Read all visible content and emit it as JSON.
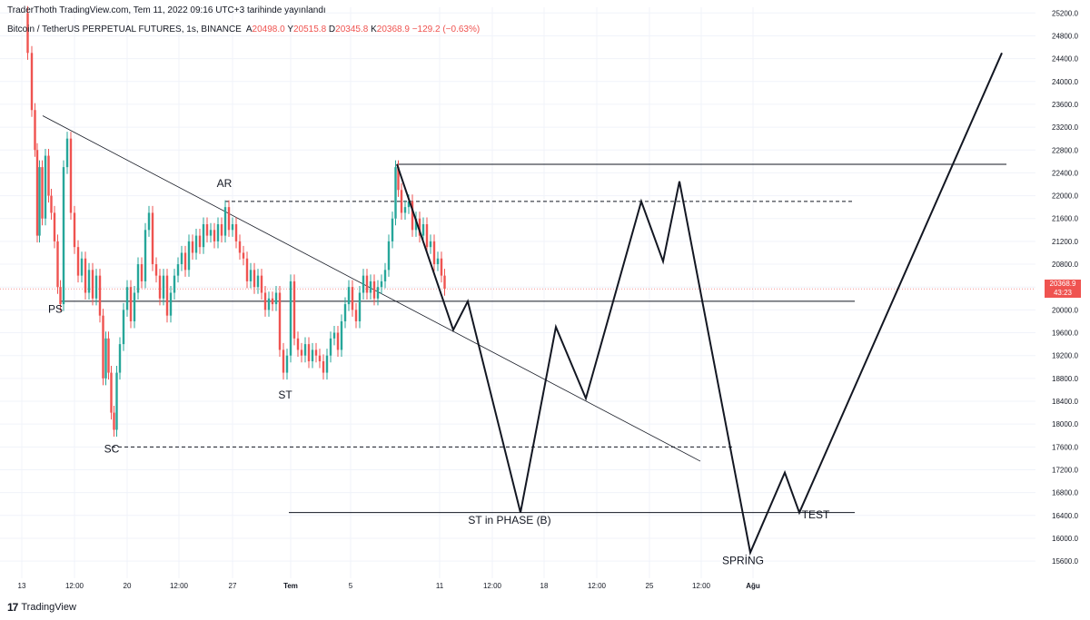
{
  "header": {
    "published": "TraderThoth TradingView.com, Tem 11, 2022 09:16 UTC+3 tarihinde yayınlandı",
    "symbol": "Bitcoin / TetherUS PERPETUAL FUTURES, 1s, BINANCE",
    "open_label": "A",
    "open": "20498.0",
    "high_label": "Y",
    "high": "20515.8",
    "low_label": "D",
    "low": "20345.8",
    "close_label": "K",
    "close": "20368.9",
    "change": "−129.2 (−0.63%)"
  },
  "footer": {
    "brand": "TradingView",
    "logo": "tv-logo-icon"
  },
  "price_tag": {
    "price": "20368.9",
    "countdown": "43:23"
  },
  "colors": {
    "up": "#26a69a",
    "down": "#ef5350",
    "line": "#131722",
    "grid": "#f0f3fa",
    "current": "#ef5350"
  },
  "chart_data": {
    "type": "line",
    "y_axis": {
      "range": [
        15300,
        25300
      ],
      "ticks": [
        15600,
        16000,
        16400,
        16800,
        17200,
        17600,
        18000,
        18400,
        18800,
        19200,
        19600,
        20000,
        20400,
        20800,
        21200,
        21600,
        22000,
        22400,
        22800,
        23200,
        23600,
        24000,
        24400,
        24800,
        25200
      ],
      "tick_labels": [
        "15600.0",
        "16000.0",
        "16400.0",
        "16800.0",
        "17200.0",
        "17600.0",
        "18000.0",
        "18400.0",
        "18800.0",
        "19200.0",
        "19600.0",
        "20000.0",
        "20400.0",
        "20800.0",
        "21200.0",
        "21600.0",
        "22000.0",
        "22400.0",
        "22800.0",
        "23200.0",
        "23600.0",
        "24000.0",
        "24400.0",
        "24800.0",
        "25200.0"
      ]
    },
    "x_axis": {
      "range": [
        0,
        1130
      ],
      "ticks": [
        {
          "x": 24,
          "label": "13"
        },
        {
          "x": 82,
          "label": "12:00"
        },
        {
          "x": 140,
          "label": "20"
        },
        {
          "x": 197,
          "label": "12:00"
        },
        {
          "x": 256,
          "label": "27"
        },
        {
          "x": 320,
          "label": "Tem",
          "bold": true
        },
        {
          "x": 386,
          "label": "5"
        },
        {
          "x": 484,
          "label": "11"
        },
        {
          "x": 542,
          "label": "12:00"
        },
        {
          "x": 599,
          "label": "18"
        },
        {
          "x": 657,
          "label": "12:00"
        },
        {
          "x": 715,
          "label": "25"
        },
        {
          "x": 772,
          "label": "12:00"
        },
        {
          "x": 829,
          "label": "Ağu",
          "bold": true
        }
      ]
    },
    "price_path": [
      [
        28,
        25200
      ],
      [
        33,
        24500
      ],
      [
        37,
        23500
      ],
      [
        40,
        22800
      ],
      [
        42,
        21300
      ],
      [
        45,
        22500
      ],
      [
        48,
        21600
      ],
      [
        52,
        22700
      ],
      [
        55,
        22000
      ],
      [
        58,
        21700
      ],
      [
        62,
        21200
      ],
      [
        65,
        20400
      ],
      [
        68,
        20100
      ],
      [
        72,
        22500
      ],
      [
        76,
        23000
      ],
      [
        80,
        21700
      ],
      [
        84,
        21100
      ],
      [
        88,
        20600
      ],
      [
        92,
        20900
      ],
      [
        96,
        20300
      ],
      [
        100,
        20700
      ],
      [
        104,
        20200
      ],
      [
        108,
        20600
      ],
      [
        112,
        19900
      ],
      [
        115,
        18800
      ],
      [
        118,
        19500
      ],
      [
        121,
        18900
      ],
      [
        124,
        18200
      ],
      [
        127,
        17900
      ],
      [
        130,
        18900
      ],
      [
        134,
        19400
      ],
      [
        138,
        20000
      ],
      [
        142,
        20400
      ],
      [
        146,
        19800
      ],
      [
        150,
        20300
      ],
      [
        154,
        20800
      ],
      [
        158,
        20500
      ],
      [
        162,
        21400
      ],
      [
        166,
        21700
      ],
      [
        170,
        20800
      ],
      [
        174,
        20600
      ],
      [
        178,
        20200
      ],
      [
        182,
        20600
      ],
      [
        186,
        19900
      ],
      [
        190,
        20300
      ],
      [
        194,
        20600
      ],
      [
        198,
        20800
      ],
      [
        202,
        21000
      ],
      [
        206,
        20700
      ],
      [
        210,
        21200
      ],
      [
        214,
        21000
      ],
      [
        218,
        21300
      ],
      [
        222,
        21100
      ],
      [
        226,
        21500
      ],
      [
        230,
        21300
      ],
      [
        234,
        21400
      ],
      [
        238,
        21200
      ],
      [
        242,
        21500
      ],
      [
        246,
        21300
      ],
      [
        250,
        21800
      ],
      [
        254,
        21400
      ],
      [
        258,
        21500
      ],
      [
        262,
        21200
      ],
      [
        266,
        21000
      ],
      [
        270,
        20900
      ],
      [
        274,
        20500
      ],
      [
        278,
        20700
      ],
      [
        282,
        20400
      ],
      [
        286,
        20600
      ],
      [
        290,
        20300
      ],
      [
        294,
        20000
      ],
      [
        298,
        20200
      ],
      [
        302,
        20100
      ],
      [
        306,
        20300
      ],
      [
        310,
        19300
      ],
      [
        314,
        18900
      ],
      [
        318,
        19200
      ],
      [
        322,
        20500
      ],
      [
        326,
        19500
      ],
      [
        330,
        19300
      ],
      [
        334,
        19200
      ],
      [
        338,
        19400
      ],
      [
        342,
        19100
      ],
      [
        346,
        19300
      ],
      [
        350,
        19200
      ],
      [
        354,
        19100
      ],
      [
        358,
        18900
      ],
      [
        362,
        19200
      ],
      [
        366,
        19500
      ],
      [
        370,
        19600
      ],
      [
        374,
        19300
      ],
      [
        378,
        19800
      ],
      [
        382,
        20100
      ],
      [
        386,
        20400
      ],
      [
        390,
        20000
      ],
      [
        394,
        19800
      ],
      [
        398,
        20300
      ],
      [
        402,
        20600
      ],
      [
        406,
        20300
      ],
      [
        410,
        20500
      ],
      [
        414,
        20200
      ],
      [
        418,
        20400
      ],
      [
        422,
        20500
      ],
      [
        426,
        20700
      ],
      [
        430,
        21200
      ],
      [
        434,
        21600
      ],
      [
        437,
        22500
      ],
      [
        440,
        22100
      ],
      [
        444,
        21700
      ],
      [
        448,
        21800
      ],
      [
        452,
        21900
      ],
      [
        456,
        21400
      ],
      [
        460,
        21600
      ],
      [
        464,
        21300
      ],
      [
        468,
        21500
      ],
      [
        472,
        21100
      ],
      [
        476,
        21200
      ],
      [
        480,
        20800
      ],
      [
        484,
        20900
      ],
      [
        488,
        20600
      ],
      [
        491,
        20368
      ]
    ],
    "current_price": 20368.9,
    "projection": [
      [
        437,
        22550
      ],
      [
        499,
        19650
      ],
      [
        515,
        20150
      ],
      [
        573,
        16450
      ],
      [
        612,
        19700
      ],
      [
        645,
        18450
      ],
      [
        706,
        21900
      ],
      [
        730,
        20850
      ],
      [
        748,
        22250
      ],
      [
        826,
        15750
      ],
      [
        864,
        17150
      ],
      [
        880,
        16450
      ],
      [
        1103,
        24500
      ]
    ],
    "levels": [
      {
        "style": "solid",
        "price": 20150,
        "x": [
          67,
          941
        ]
      },
      {
        "style": "solid",
        "price": 22550,
        "x": [
          437,
          1108
        ]
      },
      {
        "style": "dashed",
        "price": 21900,
        "x": [
          248,
          941
        ]
      },
      {
        "style": "dashed",
        "price": 17600,
        "x": [
          123,
          806
        ]
      },
      {
        "style": "solid",
        "price": 16450,
        "x": [
          318,
          941
        ]
      }
    ],
    "trendline": [
      [
        47,
        23400
      ],
      [
        771,
        17350
      ]
    ],
    "annotations": [
      {
        "text": "PS",
        "x": 61,
        "price": 19950
      },
      {
        "text": "AR",
        "x": 247,
        "price": 22150
      },
      {
        "text": "SC",
        "x": 123,
        "price": 17500
      },
      {
        "text": "ST",
        "x": 314,
        "price": 18450
      },
      {
        "text": "ST in PHASE (B)",
        "x": 561,
        "price": 16250
      },
      {
        "text": "SPRİNG",
        "x": 818,
        "price": 15550
      },
      {
        "text": "TEST",
        "x": 898,
        "price": 16350
      }
    ]
  }
}
